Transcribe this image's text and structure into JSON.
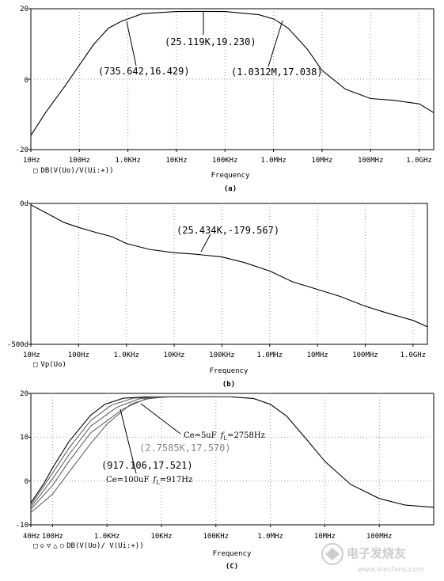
{
  "chart_data": [
    {
      "type": "line",
      "panel": "a",
      "caption": "(a)",
      "xlabel": "Frequency",
      "xscale": "log",
      "xlim": [
        10,
        2000000000.0
      ],
      "ylim": [
        -20,
        20
      ],
      "y_ticks": [
        "20",
        "0",
        "-20"
      ],
      "x_ticks": [
        "10Hz",
        "100Hz",
        "1.0KHz",
        "10KHz",
        "100KHz",
        "1.0MHz",
        "10MHz",
        "100MHz",
        "1.0GHz"
      ],
      "legend": [
        {
          "marker": "□",
          "label": "DB(V(Uo)/V(Ui:+))"
        }
      ],
      "series": [
        {
          "x": [
            10,
            20,
            50,
            100,
            200,
            400,
            735.642,
            2000,
            10000,
            25119,
            100000,
            500000,
            1031200,
            2000000,
            5000000,
            10000000,
            30000000,
            100000000,
            300000000,
            1000000000,
            2000000000
          ],
          "y": [
            -16,
            -9.5,
            -2,
            4,
            10,
            14.5,
            16.429,
            18.6,
            19.2,
            19.23,
            19.2,
            18.3,
            17.038,
            14.5,
            8.5,
            2.5,
            -2.8,
            -5.5,
            -6,
            -7,
            -9.5
          ]
        }
      ],
      "annotations": [
        {
          "text": "(25.119K,19.230)",
          "x": 25119,
          "y": 19.23
        },
        {
          "text": "(735.642,16.429)",
          "x": 735.642,
          "y": 16.429
        },
        {
          "text": "(1.0312M,17.038)",
          "x": 1031200,
          "y": 17.038
        }
      ]
    },
    {
      "type": "line",
      "panel": "b",
      "caption": "(b)",
      "xlabel": "Frequency",
      "xscale": "log",
      "xlim": [
        10,
        2000000000.0
      ],
      "ylim": [
        -500,
        0
      ],
      "y_ticks": [
        "0d",
        "-500d"
      ],
      "x_ticks": [
        "10Hz",
        "100Hz",
        "1.0KHz",
        "10KHz",
        "100KHz",
        "1.0MHz",
        "10MHz",
        "100MHz",
        "1.0GHz"
      ],
      "legend": [
        {
          "marker": "□",
          "label": "Vp(Uo)"
        }
      ],
      "series": [
        {
          "x": [
            10,
            20,
            50,
            100,
            200,
            500,
            1000,
            3000,
            10000,
            25434,
            100000,
            300000,
            1000000,
            3000000,
            10000000,
            30000000,
            100000000,
            300000000,
            1000000000,
            2000000000
          ],
          "y": [
            -5,
            -32,
            -68,
            -85,
            -100,
            -118,
            -142,
            -163,
            -175,
            -179.567,
            -190,
            -210,
            -240,
            -278,
            -305,
            -330,
            -365,
            -390,
            -415,
            -438
          ]
        }
      ],
      "annotations": [
        {
          "text": "(25.434K,-179.567)",
          "x": 25434,
          "y": -179.567
        }
      ]
    },
    {
      "type": "line",
      "panel": "c",
      "caption": "(C)",
      "xlabel": "Frequency",
      "xscale": "log",
      "xlim": [
        40,
        1000000000.0
      ],
      "ylim": [
        -10,
        20
      ],
      "y_ticks": [
        "20",
        "10",
        "0",
        "-10"
      ],
      "x_ticks": [
        "40Hz",
        "100Hz",
        "1.0KHz",
        "10KHz",
        "100KHz",
        "1.0MHz",
        "10MHz",
        "100MHz"
      ],
      "legend": [
        {
          "marker": "□",
          "label": ""
        },
        {
          "marker": "◇",
          "label": ""
        },
        {
          "marker": "▽",
          "label": ""
        },
        {
          "marker": "△",
          "label": ""
        },
        {
          "marker": "○",
          "label": "DB(V(Uo)/ V(Ui:+))"
        }
      ],
      "series": [
        {
          "label": "Ce=100uF",
          "x": [
            40,
            70,
            100,
            200,
            500,
            917.106,
            2000,
            5000,
            20000,
            200000,
            500000,
            1000000,
            2000000,
            5000000,
            10000000,
            30000000,
            100000000,
            300000000,
            1000000000
          ],
          "y": [
            -5,
            -0.5,
            3,
            9,
            15,
            17.521,
            18.9,
            19.2,
            19.23,
            19.2,
            18.8,
            17.5,
            14.8,
            9,
            4.5,
            -0.8,
            -4,
            -5.5,
            -6
          ]
        },
        {
          "label": "",
          "x": [
            40,
            100,
            200,
            500,
            1200,
            3000,
            8000,
            20000,
            200000
          ],
          "y": [
            -5.5,
            1.8,
            7.5,
            13.8,
            17.3,
            18.9,
            19.2,
            19.23,
            19.2
          ]
        },
        {
          "label": "",
          "x": [
            40,
            100,
            200,
            500,
            1500,
            4000,
            10000,
            20000,
            200000
          ],
          "y": [
            -6,
            0.5,
            6,
            12.5,
            16.8,
            18.8,
            19.2,
            19.23,
            19.2
          ]
        },
        {
          "label": "",
          "x": [
            40,
            100,
            200,
            500,
            2000,
            5000,
            12000,
            25000,
            200000
          ],
          "y": [
            -6.5,
            -1,
            4.5,
            11,
            16.5,
            18.7,
            19.2,
            19.23,
            19.2
          ]
        },
        {
          "label": "Ce=5uF",
          "x": [
            40,
            100,
            200,
            500,
            1000,
            2758.5,
            6000,
            15000,
            30000,
            200000
          ],
          "y": [
            -7.2,
            -3,
            2,
            8.5,
            13,
            17.57,
            18.9,
            19.2,
            19.23,
            19.2
          ]
        }
      ],
      "annotations": [
        {
          "text": "(2.7585K,17.570)",
          "x": 2758.5,
          "y": 17.57
        },
        {
          "text": "(917.106,17.521)",
          "x": 917.106,
          "y": 17.521
        }
      ],
      "notes": [
        {
          "prefix": "Ce=5uF",
          "f": "f",
          "sub": "L",
          "value": "=2758Hz"
        },
        {
          "prefix": "Ce=100uF",
          "f": "f",
          "sub": "L",
          "value": "=917Hz"
        }
      ]
    }
  ],
  "watermark": {
    "text": "电子发烧友",
    "sub": "www.elecfans.com"
  }
}
